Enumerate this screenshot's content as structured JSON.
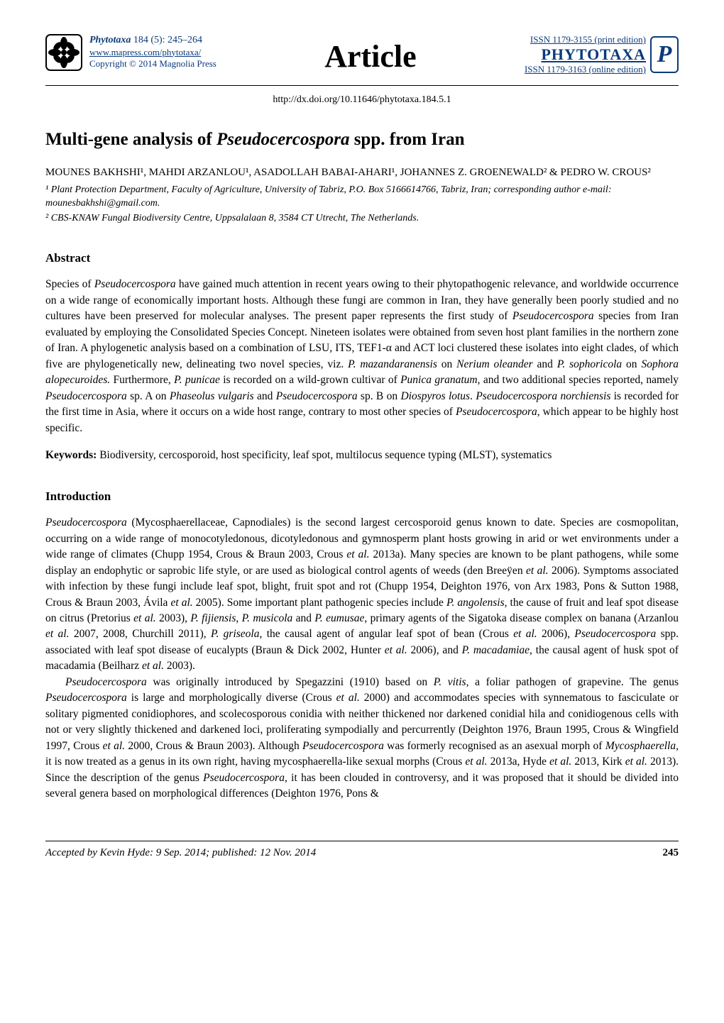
{
  "colors": {
    "link_blue": "#0a3a7a",
    "text": "#000000",
    "background": "#ffffff",
    "rule": "#000000"
  },
  "typography": {
    "body_family": "Times New Roman",
    "body_size_pt": 11,
    "title_size_pt": 18,
    "article_word_size_pt": 32,
    "section_heading_size_pt": 12
  },
  "masthead": {
    "journal_name": "Phytotaxa",
    "volume_issue_pages": "184 (5): 245–264",
    "url": "www.mapress.com/phytotaxa/",
    "copyright": "Copyright © 2014 Magnolia Press",
    "article_label": "Article",
    "issn_print": "ISSN 1179-3155 (print edition)",
    "phytotaxa_caps": "PHYTOTAXA",
    "issn_online": "ISSN 1179-3163 (online edition)",
    "flower_icon_name": "flower-icon",
    "badge_icon_name": "p-badge"
  },
  "doi": "http://dx.doi.org/10.11646/phytotaxa.184.5.1",
  "title_parts": {
    "prefix": "Multi-gene analysis of ",
    "species_italic": "Pseudocercospora",
    "suffix": " spp. from Iran"
  },
  "authors_line": "MOUNES BAKHSHI¹, MAHDI ARZANLOU¹, ASADOLLAH BABAI-AHARI¹, JOHANNES Z. GROENEWALD² & PEDRO W. CROUS²",
  "affiliations": {
    "a1": "¹ Plant Protection Department, Faculty of Agriculture, University of Tabriz, P.O. Box 5166614766, Tabriz, Iran; corresponding author e-mail: mounesbakhshi@gmail.com.",
    "a2": "² CBS-KNAW Fungal Biodiversity Centre, Uppsalalaan 8, 3584 CT Utrecht, The Netherlands."
  },
  "sections": {
    "abstract_heading": "Abstract",
    "abstract_html": "Species of <em>Pseudocercospora</em> have gained much attention in recent years owing to their phytopathogenic relevance, and worldwide occurrence on a wide range of economically important hosts. Although these fungi are common in Iran, they have generally been poorly studied and no cultures have been preserved for molecular analyses. The present paper represents the first study of <em>Pseudocercospora</em> species from Iran evaluated by employing the Consolidated Species Concept. Nineteen isolates were obtained from seven host plant families in the northern zone of Iran. A phylogenetic analysis based on a combination of LSU, ITS, TEF1-α and ACT loci clustered these isolates into eight clades, of which five are phylogenetically new, delineating two novel species, viz. <em>P. mazandaranensis</em> on <em>Nerium oleander</em> and <em>P. sophoricola</em> on <em>Sophora alopecuroides.</em> Furthermore, <em>P. punicae</em> is recorded on a wild-grown cultivar of <em>Punica granatum</em>, and two additional species reported, namely <em>Pseudocercospora</em> sp. A on <em>Phaseolus vulgaris</em> and <em>Pseudocercospora</em> sp. B on <em>Diospyros lotus</em>. <em>Pseudocercospora norchiensis</em> is recorded for the first time in Asia, where it occurs on a wide host range, contrary to most other species of <em>Pseudocercospora</em>, which appear to be highly host specific.",
    "keywords_label": "Keywords:",
    "keywords_text": " Biodiversity, cercosporoid, host specificity, leaf spot, multilocus sequence typing (MLST), systematics",
    "introduction_heading": "Introduction",
    "intro_para1_html": "<em>Pseudocercospora</em> (Mycosphaerellaceae, Capnodiales) is the second largest cercosporoid genus known to date. Species are cosmopolitan, occurring on a wide range of monocotyledonous, dicotyledonous and gymnosperm plant hosts growing in arid or wet environments under a wide range of climates (Chupp 1954, Crous & Braun 2003, Crous <em>et al.</em> 2013a). Many species are known to be plant pathogens, while some display an endophytic or saprobic life style, or are used as biological control agents of weeds (den Breeÿen <em>et al.</em> 2006). Symptoms associated with infection by these fungi include leaf spot, blight, fruit spot and rot (Chupp 1954, Deighton 1976, von Arx 1983, Pons & Sutton 1988, Crous & Braun 2003, Ávila <em>et al.</em> 2005). Some important plant pathogenic species include <em>P. angolensis,</em> the cause of fruit and leaf spot disease on citrus (Pretorius <em>et al.</em> 2003), <em>P. fijiensis</em>, <em>P. musicola</em> and <em>P. eumusae</em>, primary agents of the Sigatoka disease complex on banana (Arzanlou <em>et al.</em> 2007, 2008, Churchill 2011), <em>P. griseola,</em> the causal agent of angular leaf spot of bean (Crous <em>et al.</em> 2006), <em>Pseudocercospora</em> spp. associated with leaf spot disease of eucalypts (Braun & Dick 2002, Hunter <em>et al.</em> 2006), and <em>P. macadamiae,</em> the causal agent of husk spot of macadamia (Beilharz <em>et al.</em> 2003).",
    "intro_para2_html": "<em>Pseudocercospora</em> was originally introduced by Spegazzini (1910) based on <em>P. vitis</em>, a foliar pathogen of grapevine. The genus <em>Pseudocercospora</em> is large and morphologically diverse (Crous <em>et al.</em> 2000) and accommodates species with synnematous to fasciculate or solitary pigmented conidiophores, and scolecosporous conidia with neither thickened nor darkened conidial hila and conidiogenous cells with not or very slightly thickened and darkened loci, proliferating sympodially and percurrently (Deighton 1976, Braun 1995, Crous & Wingfield 1997, Crous <em>et al.</em> 2000, Crous & Braun 2003). Although <em>Pseudocercospora</em> was formerly recognised as an asexual morph of <em>Mycosphaerella</em>, it is now treated as a genus in its own right, having mycosphaerella-like sexual morphs (Crous <em>et al.</em> 2013a, Hyde <em>et al.</em> 2013, Kirk <em>et al.</em> 2013). Since the description of the genus <em>Pseudocercospora</em>, it has been clouded in controversy, and it was proposed that it should be divided into several genera based on morphological differences (Deighton 1976, Pons &"
  },
  "footer": {
    "accepted": "Accepted by Kevin Hyde: 9 Sep. 2014; published: 12 Nov. 2014",
    "page_number": "245"
  }
}
